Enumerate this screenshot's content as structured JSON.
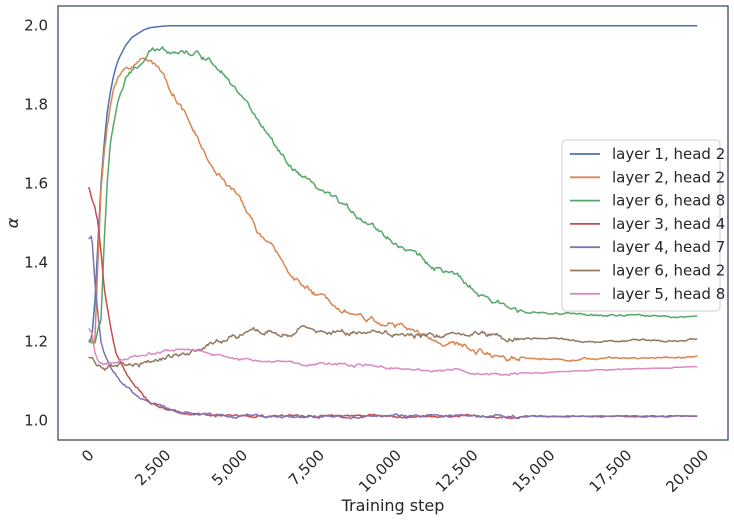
{
  "chart_data": {
    "type": "line",
    "title": "",
    "xlabel": "Training step",
    "ylabel": "α",
    "xlim": [
      -1000,
      20800
    ],
    "ylim": [
      0.95,
      2.05
    ],
    "xticks": [
      0,
      2500,
      5000,
      7500,
      10000,
      12500,
      15000,
      17500,
      20000
    ],
    "xtick_labels": [
      "0",
      "2,500",
      "5,000",
      "7,500",
      "10,000",
      "12,500",
      "15,000",
      "17,500",
      "20,000"
    ],
    "yticks": [
      1.0,
      1.2,
      1.4,
      1.6,
      1.8,
      2.0
    ],
    "ytick_labels": [
      "1.0",
      "1.2",
      "1.4",
      "1.6",
      "1.8",
      "2.0"
    ],
    "grid": false,
    "legend_position": "center-right",
    "series": [
      {
        "name": "layer 1, head 2",
        "color": "#4c72b0",
        "noise": 0.0,
        "x": [
          0,
          100,
          200,
          300,
          400,
          500,
          600,
          700,
          800,
          900,
          1000,
          1200,
          1400,
          1600,
          1800,
          2000,
          2300,
          2600,
          3000,
          3500,
          4000,
          5000,
          10000,
          15000,
          19800
        ],
        "y": [
          1.2,
          1.21,
          1.3,
          1.45,
          1.6,
          1.7,
          1.78,
          1.83,
          1.87,
          1.9,
          1.92,
          1.95,
          1.97,
          1.98,
          1.99,
          1.995,
          1.998,
          2.0,
          2.0,
          2.0,
          2.0,
          2.0,
          2.0,
          2.0,
          2.0
        ]
      },
      {
        "name": "layer 2, head 2",
        "color": "#dd8452",
        "noise": 0.006,
        "x": [
          0,
          200,
          300,
          400,
          500,
          600,
          700,
          800,
          1000,
          1200,
          1500,
          1800,
          2000,
          2200,
          2500,
          3000,
          3500,
          4000,
          4500,
          5000,
          5500,
          6000,
          6500,
          7000,
          7500,
          8000,
          8500,
          9000,
          9500,
          10000,
          10500,
          11000,
          11500,
          12000,
          12500,
          13000,
          14000,
          15000,
          16000,
          17000,
          18000,
          19000,
          19800
        ],
        "y": [
          1.2,
          1.2,
          1.4,
          1.58,
          1.68,
          1.75,
          1.8,
          1.84,
          1.87,
          1.89,
          1.905,
          1.915,
          1.92,
          1.9,
          1.86,
          1.8,
          1.72,
          1.64,
          1.6,
          1.55,
          1.48,
          1.43,
          1.38,
          1.34,
          1.31,
          1.3,
          1.28,
          1.26,
          1.25,
          1.24,
          1.23,
          1.21,
          1.2,
          1.19,
          1.18,
          1.17,
          1.16,
          1.155,
          1.155,
          1.157,
          1.158,
          1.16,
          1.162
        ]
      },
      {
        "name": "layer 6, head 8",
        "color": "#55a868",
        "noise": 0.006,
        "x": [
          0,
          200,
          400,
          500,
          600,
          700,
          800,
          900,
          1000,
          1200,
          1500,
          1800,
          2000,
          2500,
          3000,
          3500,
          4000,
          4500,
          5000,
          5500,
          6000,
          6500,
          7000,
          7500,
          8000,
          8500,
          9000,
          9500,
          10000,
          10500,
          11000,
          11500,
          12000,
          12500,
          13000,
          14000,
          15000,
          16000,
          17000,
          18000,
          19000,
          19800
        ],
        "y": [
          1.2,
          1.2,
          1.25,
          1.45,
          1.6,
          1.7,
          1.75,
          1.79,
          1.82,
          1.86,
          1.89,
          1.91,
          1.93,
          1.94,
          1.94,
          1.93,
          1.91,
          1.88,
          1.82,
          1.76,
          1.7,
          1.64,
          1.61,
          1.58,
          1.56,
          1.53,
          1.51,
          1.48,
          1.45,
          1.43,
          1.4,
          1.38,
          1.36,
          1.33,
          1.3,
          1.28,
          1.27,
          1.268,
          1.265,
          1.265,
          1.264,
          1.262
        ]
      },
      {
        "name": "layer 3, head 4",
        "color": "#c44e52",
        "noise": 0.003,
        "x": [
          0,
          100,
          200,
          300,
          400,
          500,
          700,
          900,
          1200,
          1500,
          2000,
          2500,
          3000,
          3500,
          4000,
          5000,
          8000,
          12000,
          16000,
          19800
        ],
        "y": [
          1.59,
          1.56,
          1.54,
          1.5,
          1.42,
          1.33,
          1.24,
          1.17,
          1.12,
          1.08,
          1.045,
          1.03,
          1.02,
          1.013,
          1.01,
          1.01,
          1.01,
          1.01,
          1.01,
          1.01
        ]
      },
      {
        "name": "layer 4, head 7",
        "color": "#8172b3",
        "noise": 0.003,
        "x": [
          0,
          100,
          200,
          300,
          400,
          500,
          600,
          800,
          1000,
          1300,
          1600,
          2000,
          2500,
          3000,
          3500,
          4000,
          5000,
          8000,
          12000,
          16000,
          19800
        ],
        "y": [
          1.46,
          1.47,
          1.35,
          1.27,
          1.2,
          1.17,
          1.15,
          1.12,
          1.1,
          1.08,
          1.06,
          1.045,
          1.03,
          1.02,
          1.015,
          1.012,
          1.01,
          1.01,
          1.01,
          1.01,
          1.01
        ]
      },
      {
        "name": "layer 6, head 2",
        "color": "#937860",
        "noise": 0.006,
        "x": [
          0,
          200,
          400,
          600,
          800,
          1000,
          1500,
          2000,
          2500,
          3000,
          3500,
          4000,
          4500,
          5000,
          5500,
          6000,
          6500,
          7000,
          7500,
          8000,
          8500,
          9000,
          9500,
          10000,
          10500,
          11000,
          11500,
          12000,
          12500,
          13000,
          14000,
          15000,
          16000,
          17000,
          18000,
          19000,
          19800
        ],
        "y": [
          1.16,
          1.15,
          1.14,
          1.13,
          1.13,
          1.135,
          1.14,
          1.145,
          1.16,
          1.17,
          1.18,
          1.19,
          1.2,
          1.215,
          1.22,
          1.225,
          1.22,
          1.23,
          1.22,
          1.225,
          1.22,
          1.225,
          1.23,
          1.22,
          1.215,
          1.21,
          1.22,
          1.22,
          1.225,
          1.22,
          1.21,
          1.205,
          1.2,
          1.2,
          1.202,
          1.203,
          1.205
        ]
      },
      {
        "name": "layer 5, head 8",
        "color": "#da8bc3",
        "noise": 0.003,
        "x": [
          0,
          100,
          200,
          300,
          500,
          700,
          1000,
          1500,
          2000,
          2500,
          3000,
          3500,
          4000,
          4500,
          5000,
          5500,
          6000,
          7000,
          8000,
          9000,
          10000,
          11000,
          12000,
          12500,
          13000,
          14000,
          15000,
          16000,
          17000,
          18000,
          19000,
          19800
        ],
        "y": [
          1.23,
          1.22,
          1.17,
          1.15,
          1.145,
          1.145,
          1.15,
          1.16,
          1.17,
          1.175,
          1.18,
          1.175,
          1.17,
          1.16,
          1.155,
          1.15,
          1.15,
          1.145,
          1.145,
          1.14,
          1.135,
          1.13,
          1.125,
          1.12,
          1.115,
          1.12,
          1.12,
          1.125,
          1.128,
          1.13,
          1.133,
          1.135
        ]
      }
    ]
  }
}
